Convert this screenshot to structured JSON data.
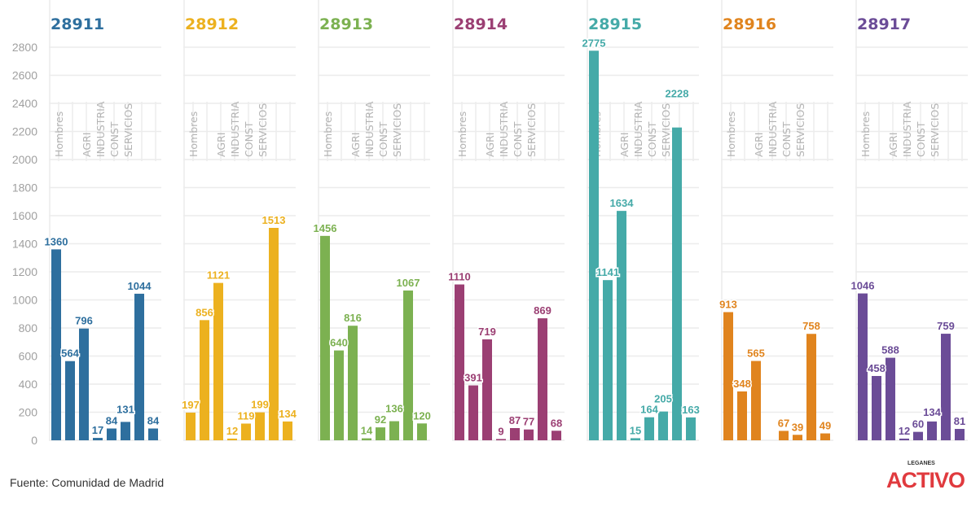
{
  "chart_data": {
    "type": "bar",
    "categories": [
      "Hombres",
      "",
      "AGRI",
      "INDUSTRIA",
      "CONST",
      "SERVICIOS",
      "",
      ""
    ],
    "ylim": [
      0,
      2800
    ],
    "yticks": [
      0,
      200,
      400,
      600,
      800,
      1000,
      1200,
      1400,
      1600,
      1800,
      2000,
      2200,
      2400,
      2600,
      2800
    ],
    "grid": true,
    "panels": [
      {
        "title": "28911",
        "color": "#2e6f9e",
        "values": [
          1360,
          564,
          796,
          17,
          84,
          131,
          1044,
          84
        ]
      },
      {
        "title": "28912",
        "color": "#ecb11f",
        "values": [
          197,
          856,
          1121,
          12,
          119,
          199,
          1513,
          134
        ]
      },
      {
        "title": "28913",
        "color": "#7cb151",
        "values": [
          1456,
          640,
          816,
          14,
          92,
          136,
          1067,
          120
        ]
      },
      {
        "title": "28914",
        "color": "#9b3f73",
        "values": [
          1110,
          391,
          719,
          9,
          87,
          77,
          869,
          68
        ]
      },
      {
        "title": "28915",
        "color": "#45aaa8",
        "values": [
          2775,
          1141,
          1634,
          15,
          164,
          205,
          2228,
          163
        ]
      },
      {
        "title": "28916",
        "color": "#e0841e",
        "values": [
          913,
          348,
          565,
          null,
          67,
          39,
          758,
          49
        ]
      },
      {
        "title": "28917",
        "color": "#6b4c97",
        "values": [
          1046,
          458,
          588,
          12,
          60,
          134,
          759,
          81
        ]
      }
    ]
  },
  "footer": {
    "source": "Fuente: Comunidad de Madrid",
    "logo_main": "ACTIVO",
    "logo_sub": "LEGANES"
  }
}
